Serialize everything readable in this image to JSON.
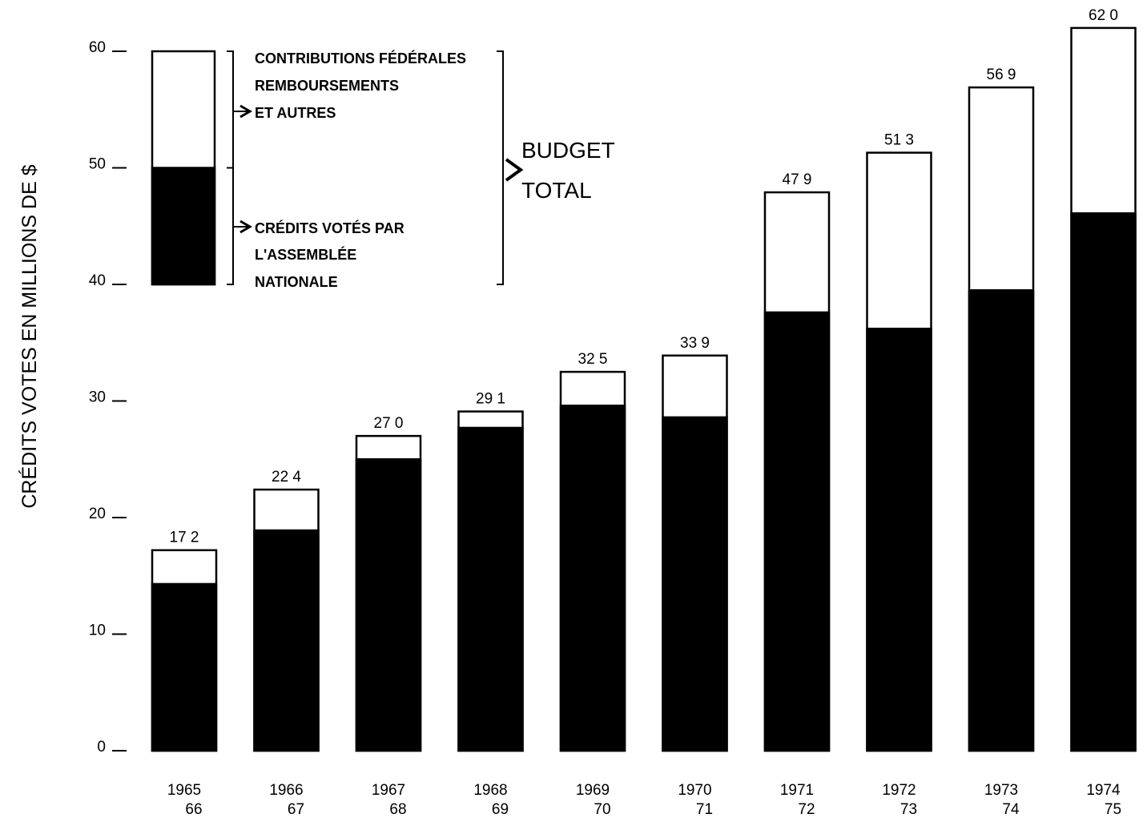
{
  "chart_data": {
    "type": "bar",
    "stacked": true,
    "ylabel": "CRÉDITS VOTES EN MILLIONS DE $",
    "ylim": [
      0,
      62
    ],
    "yticks": [
      0,
      10,
      20,
      30,
      40,
      50,
      60
    ],
    "grid": false,
    "categories": [
      {
        "line1": "1965",
        "line2": "66"
      },
      {
        "line1": "1966",
        "line2": "67"
      },
      {
        "line1": "1967",
        "line2": "68"
      },
      {
        "line1": "1968",
        "line2": "69"
      },
      {
        "line1": "1969",
        "line2": "70"
      },
      {
        "line1": "1970",
        "line2": "71"
      },
      {
        "line1": "1971",
        "line2": "72"
      },
      {
        "line1": "1972",
        "line2": "73"
      },
      {
        "line1": "1973",
        "line2": "74"
      },
      {
        "line1": "1974",
        "line2": "75"
      }
    ],
    "totals": [
      17.2,
      22.4,
      27.0,
      29.1,
      32.5,
      33.9,
      47.9,
      51.3,
      56.9,
      62.0
    ],
    "total_labels": [
      "17 2",
      "22 4",
      "27 0",
      "29 1",
      "32 5",
      "33 9",
      "47 9",
      "51 3",
      "56 9",
      "62 0"
    ],
    "series": [
      {
        "name": "CRÉDITS VOTÉS PAR L'ASSEMBLÉE NATIONALE",
        "color": "#000000",
        "values": [
          14.3,
          18.9,
          25.0,
          27.7,
          29.6,
          28.6,
          37.6,
          36.2,
          39.5,
          46.1
        ]
      },
      {
        "name": "CONTRIBUTIONS FÉDÉRALES REMBOURSEMENTS ET AUTRES",
        "color": "#ffffff",
        "values": [
          2.9,
          3.5,
          2.0,
          1.4,
          2.9,
          5.3,
          10.3,
          15.1,
          17.4,
          15.9
        ]
      }
    ],
    "legend": {
      "placement": "top-left",
      "swatch_range": [
        40,
        60
      ],
      "swatch_split": 50,
      "upper_lines": [
        "CONTRIBUTIONS FÉDÉRALES",
        "REMBOURSEMENTS",
        "ET AUTRES"
      ],
      "lower_lines": [
        "CRÉDITS VOTÉS PAR",
        "L'ASSEMBLÉE",
        "NATIONALE"
      ],
      "total_lines": [
        "BUDGET",
        "TOTAL"
      ]
    }
  }
}
